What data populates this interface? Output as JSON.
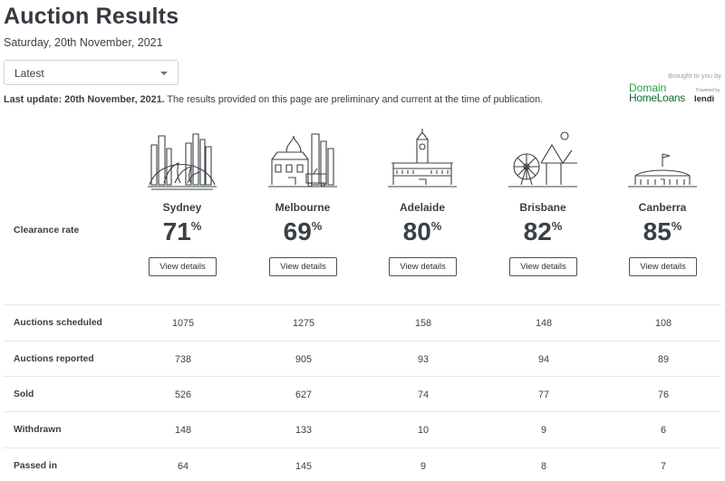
{
  "page": {
    "title": "Auction Results",
    "date": "Saturday, 20th November, 2021"
  },
  "filter": {
    "selected": "Latest"
  },
  "update": {
    "bold": "Last update: 20th November, 2021.",
    "text": " The results provided on this page are preliminary and current at the time of publication."
  },
  "sponsor": {
    "brought": "Brought to you by",
    "line1": "Domain",
    "line2": "HomeLoans",
    "powered": "Powered by",
    "lendi": "lendi"
  },
  "clearance_label": "Clearance rate",
  "cities": [
    {
      "name": "Sydney",
      "rate": "71",
      "button": "View details"
    },
    {
      "name": "Melbourne",
      "rate": "69",
      "button": "View details"
    },
    {
      "name": "Adelaide",
      "rate": "80",
      "button": "View details"
    },
    {
      "name": "Brisbane",
      "rate": "82",
      "button": "View details"
    },
    {
      "name": "Canberra",
      "rate": "85",
      "button": "View details"
    }
  ],
  "percent": "%",
  "rows": [
    {
      "label": "Auctions scheduled",
      "values": [
        "1075",
        "1275",
        "158",
        "148",
        "108"
      ]
    },
    {
      "label": "Auctions reported",
      "values": [
        "738",
        "905",
        "93",
        "94",
        "89"
      ]
    },
    {
      "label": "Sold",
      "values": [
        "526",
        "627",
        "74",
        "77",
        "76"
      ]
    },
    {
      "label": "Withdrawn",
      "values": [
        "148",
        "133",
        "10",
        "9",
        "6"
      ]
    },
    {
      "label": "Passed in",
      "values": [
        "64",
        "145",
        "9",
        "8",
        "7"
      ]
    }
  ]
}
